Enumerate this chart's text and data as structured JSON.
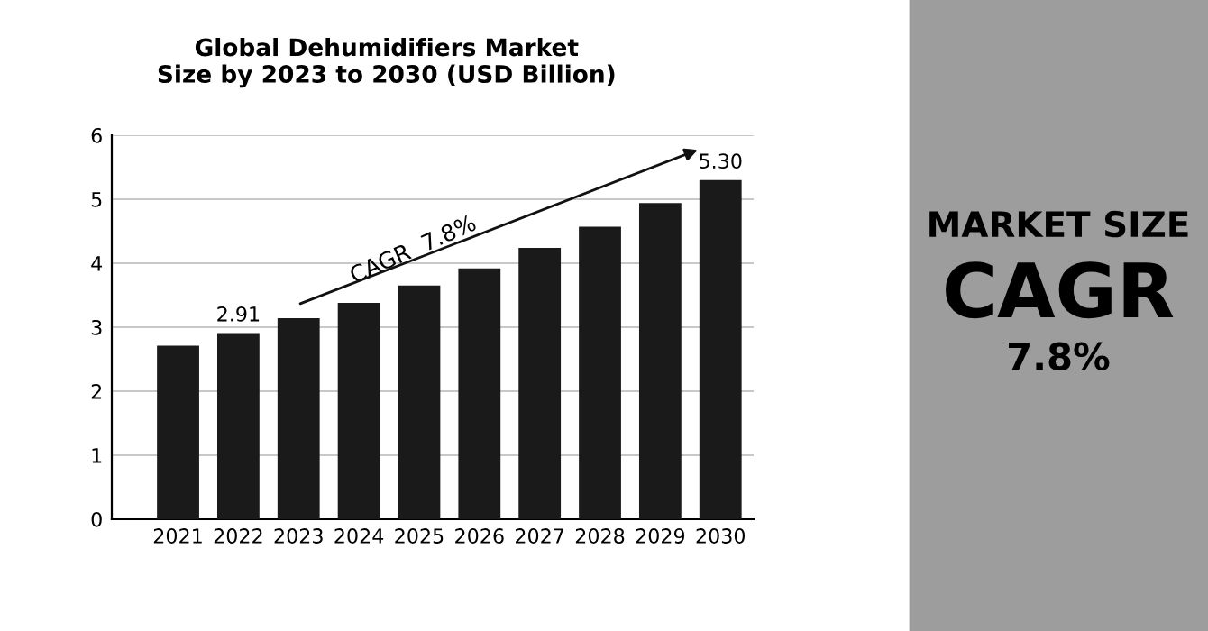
{
  "chart_data": [
    {
      "type": "bar",
      "title": "Global Dehumidifiers Market\nSize by 2023 to 2030 (USD Billion)",
      "categories": [
        "2021",
        "2022",
        "2023",
        "2024",
        "2025",
        "2026",
        "2027",
        "2028",
        "2029",
        "2030"
      ],
      "values": [
        2.71,
        2.91,
        3.14,
        3.38,
        3.65,
        3.92,
        4.24,
        4.57,
        4.94,
        5.3
      ],
      "value_labels": [
        null,
        "2.91",
        null,
        null,
        null,
        null,
        null,
        null,
        null,
        "5.30"
      ],
      "color": "#1a1a1a",
      "ylim": [
        0,
        6
      ],
      "yticks": [
        0,
        1,
        2,
        3,
        4,
        5,
        6
      ],
      "grid": "y",
      "annotations": [
        "CAGR  7.8%"
      ]
    },
    {
      "type": "other",
      "annotations": [
        "MARKET SIZE",
        "CAGR",
        "7.8%"
      ]
    }
  ]
}
